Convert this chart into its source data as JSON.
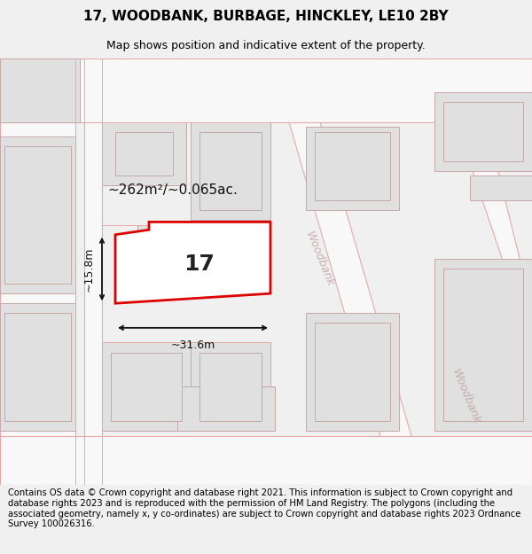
{
  "title": "17, WOODBANK, BURBAGE, HINCKLEY, LE10 2BY",
  "subtitle": "Map shows position and indicative extent of the property.",
  "area_text": "~262m²/~0.065ac.",
  "width_text": "~31.6m",
  "height_text": "~15.8m",
  "property_number": "17",
  "street_name_1": "Woodbank",
  "street_name_2": "Woodbank",
  "footer_text": "Contains OS data © Crown copyright and database right 2021. This information is subject to Crown copyright and database rights 2023 and is reproduced with the permission of HM Land Registry. The polygons (including the associated geometry, namely x, y co-ordinates) are subject to Crown copyright and database rights 2023 Ordnance Survey 100026316.",
  "bg_color": "#f0f0f0",
  "map_bg": "#f8f8f8",
  "road_stroke": "#e8a8a8",
  "road_fill": "#f8f8f8",
  "building_fill": "#e0e0e0",
  "building_stroke": "#c8a8a8",
  "property_stroke": "#dd0000",
  "property_fill": "#ffffff",
  "dimension_color": "#111111",
  "title_fontsize": 11,
  "subtitle_fontsize": 9,
  "footer_fontsize": 7.2
}
